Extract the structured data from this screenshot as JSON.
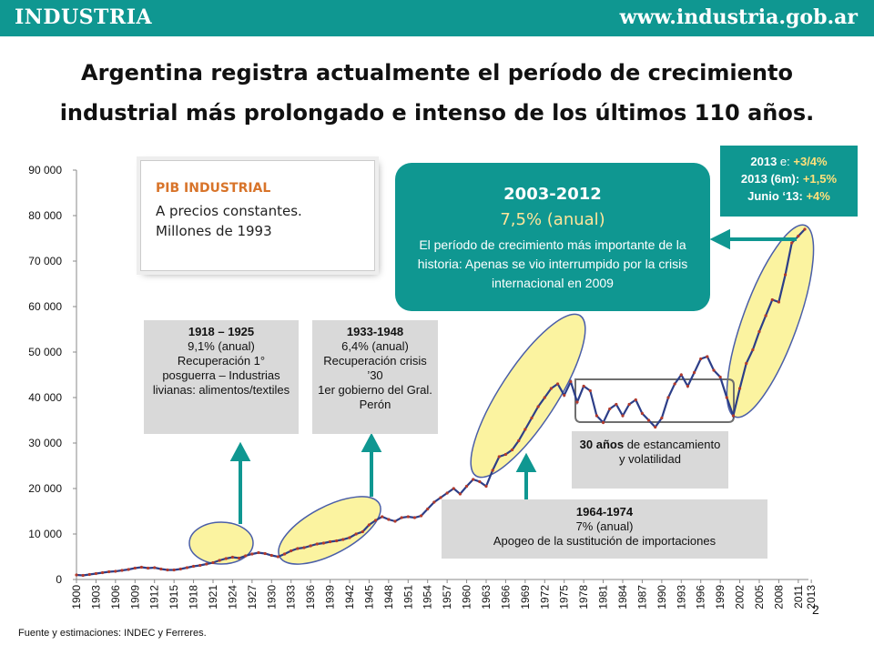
{
  "header": {
    "brand": "INDUSTRIA",
    "url": "www.industria.gob.ar"
  },
  "headline": {
    "line1": "Argentina registra actualmente el período de crecimiento",
    "line2": "industrial más prolongado e intenso de los últimos 110 años."
  },
  "legend_box": {
    "title": "PIB INDUSTRIAL",
    "line1": "A precios constantes.",
    "line2": "Millones de 1993"
  },
  "box_2003": {
    "period": "2003-2012",
    "rate": "7,5% (anual)",
    "desc": "El período de crecimiento más importante de la historia: Apenas se vio interrumpido por la crisis internacional en 2009"
  },
  "box_2013": {
    "l1a": "2013",
    "l1b": " e: ",
    "l1c": "+3/4%",
    "l2a": "2013 (6m)",
    "l2b": ": ",
    "l2c": "+1,5%",
    "l3a": "Junio ‘13",
    "l3b": ": ",
    "l3c": "+4%"
  },
  "box_1918": {
    "l1": "1918 – 1925",
    "l2": "9,1% (anual)",
    "l3": "Recuperación 1° posguerra – Industrias livianas: alimentos/textiles"
  },
  "box_1933": {
    "l1": "1933-1948",
    "l2": "6,4% (anual)",
    "l3": "Recuperación crisis ’30",
    "l4": "1er gobierno del Gral. Perón"
  },
  "box_30": {
    "bold": "30 años",
    "rest": " de estancamiento y volatilidad"
  },
  "box_1964": {
    "l1": "1964-1974",
    "l2": "7% (anual)",
    "l3": "Apogeo de la sustitución de importaciones"
  },
  "footer": {
    "source": "Fuente y estimaciones: INDEC y Ferreres.",
    "page": "2"
  },
  "colors": {
    "teal": "#0f9791",
    "line": "#2c3e88",
    "marker": "#b23a2c",
    "ellipse": "#fbf3a0",
    "orange": "#d8742a"
  },
  "chart_data": {
    "type": "line",
    "ylim": [
      0,
      90000
    ],
    "yticks": [
      0,
      10000,
      20000,
      30000,
      40000,
      50000,
      60000,
      70000,
      80000,
      90000
    ],
    "ytick_labels": [
      "0",
      "10 000",
      "20 000",
      "30 000",
      "40 000",
      "50 000",
      "60 000",
      "70 000",
      "80 000",
      "90 000"
    ],
    "xtick_labels": [
      "1900",
      "1903",
      "1906",
      "1909",
      "1912",
      "1915",
      "1918",
      "1921",
      "1924",
      "1927",
      "1930",
      "1933",
      "1936",
      "1939",
      "1942",
      "1945",
      "1948",
      "1951",
      "1954",
      "1957",
      "1960",
      "1963",
      "1966",
      "1969",
      "1972",
      "1975",
      "1978",
      "1981",
      "1984",
      "1987",
      "1990",
      "1993",
      "1996",
      "1999",
      "2002",
      "2005",
      "2008",
      "2011",
      "2013"
    ],
    "x_start": 1900,
    "values": [
      1000,
      900,
      1100,
      1300,
      1500,
      1700,
      1800,
      2000,
      2200,
      2500,
      2700,
      2500,
      2600,
      2300,
      2100,
      2100,
      2300,
      2600,
      2900,
      3100,
      3400,
      3700,
      4200,
      4600,
      4900,
      4700,
      5200,
      5600,
      5900,
      5700,
      5300,
      5000,
      5600,
      6300,
      6800,
      7000,
      7400,
      7800,
      8000,
      8300,
      8500,
      8800,
      9200,
      10000,
      10500,
      12000,
      13000,
      13800,
      13200,
      12800,
      13600,
      13800,
      13600,
      14000,
      15500,
      17000,
      18000,
      19000,
      20000,
      18800,
      20500,
      22000,
      21500,
      20500,
      24000,
      27000,
      27500,
      28500,
      30500,
      33000,
      35500,
      38000,
      40000,
      42000,
      43000,
      40500,
      43500,
      39000,
      42500,
      41500,
      36000,
      34500,
      37500,
      38500,
      36000,
      38500,
      39500,
      36500,
      35000,
      33500,
      35500,
      40000,
      43000,
      45000,
      42500,
      45500,
      48500,
      49000,
      46000,
      44500,
      40000,
      36000,
      42000,
      47500,
      50500,
      54500,
      58000,
      61500,
      61000,
      67000,
      74000,
      75500,
      77000
    ]
  }
}
